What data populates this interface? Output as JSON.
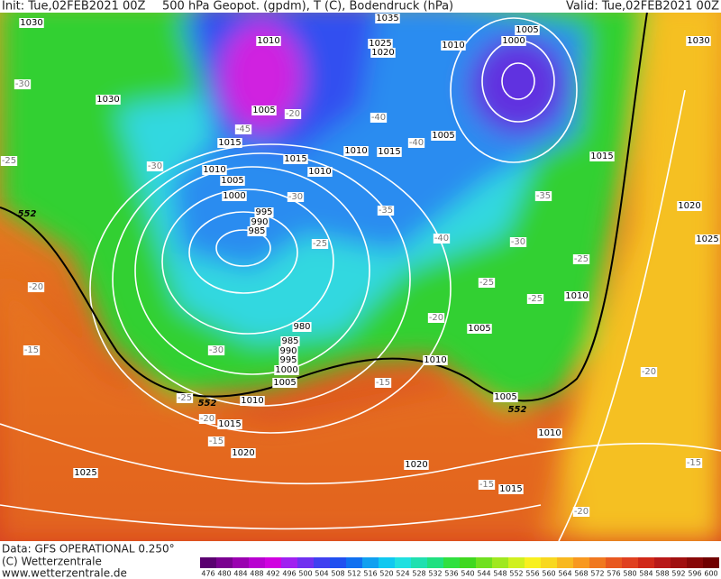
{
  "header": {
    "init": "Init: Tue,02FEB2021 00Z",
    "title": "500 hPa Geopot. (gpdm), T (C), Bodendruck (hPa)",
    "valid": "Valid: Tue,02FEB2021 00Z"
  },
  "isobar_labels": [
    1030,
    1030,
    1035,
    1010,
    1025,
    1020,
    1010,
    1005,
    1000,
    1030,
    1005,
    1015,
    1010,
    1015,
    1010,
    1010,
    1015,
    1005,
    1015,
    1005,
    1000,
    995,
    990,
    985,
    1020,
    1025,
    1010,
    980,
    985,
    990,
    995,
    1000,
    1005,
    1010,
    1005,
    1010,
    1005,
    1015,
    1010,
    1020,
    1020,
    1025,
    1015
  ],
  "temperature_labels": [
    -30,
    -25,
    -30,
    -45,
    -20,
    -40,
    -40,
    -30,
    -35,
    -25,
    -40,
    -35,
    -30,
    -25,
    -25,
    -25,
    -20,
    -20,
    -15,
    -30,
    -25,
    -20,
    -15,
    -15,
    -20,
    -15,
    -15,
    -20
  ],
  "height_labels": [
    552,
    552,
    552
  ],
  "colorbar": {
    "ticks": [
      476,
      480,
      484,
      488,
      492,
      496,
      500,
      504,
      508,
      512,
      516,
      520,
      524,
      528,
      532,
      536,
      540,
      544,
      548,
      552,
      556,
      560,
      564,
      568,
      572,
      576,
      580,
      584,
      588,
      592,
      596,
      600
    ],
    "colors": [
      "#5a0070",
      "#7a0090",
      "#9a00b0",
      "#b800d0",
      "#d000e0",
      "#a020f0",
      "#7030f0",
      "#4040f0",
      "#2050f0",
      "#1070f0",
      "#10a0f0",
      "#10c8f0",
      "#20e0e0",
      "#20e0b0",
      "#20e080",
      "#30e040",
      "#40d820",
      "#70e020",
      "#a0e820",
      "#d0f020",
      "#f8f020",
      "#f8d820",
      "#f8b820",
      "#f89820",
      "#f07820",
      "#e85820",
      "#e04020",
      "#d02818",
      "#b81818",
      "#a01010",
      "#880808",
      "#700000"
    ]
  },
  "footer": {
    "data": "Data: GFS OPERATIONAL 0.250°",
    "copyright": "(C) Wetterzentrale",
    "url": "www.wetterzentrale.de"
  }
}
